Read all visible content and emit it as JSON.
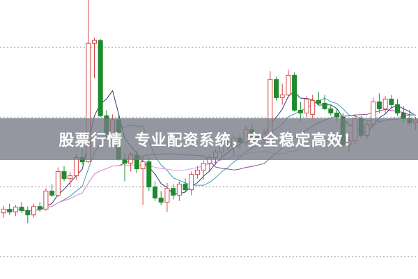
{
  "banner": {
    "text": "股票行情  专业配资系统，安全稳定高效！"
  },
  "colors": {
    "up": "#d64545",
    "down": "#1f8a2e",
    "grid": "#9a9a9a",
    "banner": "#767a84",
    "ma": [
      "#2b3b6e",
      "#3a9fb0",
      "#8b4d8e",
      "#e59ae3"
    ]
  },
  "chart_data": {
    "type": "candlestick",
    "title": "",
    "xlabel": "",
    "ylabel": "",
    "grid": true,
    "ylim": [
      2,
      42
    ],
    "gridlines": [
      5.2,
      15.2,
      25.2,
      35.2
    ],
    "moving_averages": [
      5,
      10,
      20,
      30
    ],
    "candles": [
      [
        11.5,
        12.5,
        10.8,
        12.0
      ],
      [
        12.0,
        12.8,
        11.2,
        11.6
      ],
      [
        11.6,
        12.6,
        11.0,
        12.3
      ],
      [
        12.3,
        13.0,
        11.5,
        11.8
      ],
      [
        11.8,
        12.4,
        10.0,
        11.2
      ],
      [
        11.2,
        12.8,
        10.8,
        12.4
      ],
      [
        12.4,
        13.0,
        11.6,
        12.0
      ],
      [
        12.0,
        15.0,
        11.8,
        14.6
      ],
      [
        14.6,
        15.6,
        13.8,
        14.0
      ],
      [
        14.0,
        18.0,
        13.8,
        17.4
      ],
      [
        17.4,
        18.2,
        16.0,
        16.4
      ],
      [
        16.4,
        17.4,
        15.2,
        16.8
      ],
      [
        16.8,
        20.0,
        16.2,
        19.4
      ],
      [
        19.4,
        20.6,
        18.4,
        18.8
      ],
      [
        18.8,
        42.0,
        18.6,
        35.8
      ],
      [
        35.8,
        36.6,
        30.8,
        36.2
      ],
      [
        36.2,
        36.4,
        25.2,
        25.4
      ],
      [
        25.4,
        26.2,
        22.4,
        22.8
      ],
      [
        22.8,
        25.6,
        22.0,
        24.8
      ],
      [
        24.8,
        25.4,
        19.0,
        19.2
      ],
      [
        19.2,
        20.0,
        16.0,
        18.6
      ],
      [
        18.6,
        20.2,
        17.4,
        19.8
      ],
      [
        19.8,
        20.4,
        17.2,
        17.8
      ],
      [
        17.8,
        19.6,
        12.6,
        18.8
      ],
      [
        18.8,
        19.4,
        14.6,
        15.2
      ],
      [
        15.2,
        16.0,
        13.2,
        13.6
      ],
      [
        13.6,
        14.6,
        12.6,
        13.0
      ],
      [
        13.0,
        15.8,
        11.6,
        15.0
      ],
      [
        15.0,
        15.6,
        13.4,
        14.0
      ],
      [
        14.0,
        16.0,
        13.2,
        15.6
      ],
      [
        15.6,
        16.4,
        14.4,
        14.8
      ],
      [
        14.8,
        17.4,
        14.0,
        17.0
      ],
      [
        17.0,
        18.2,
        16.4,
        17.6
      ],
      [
        17.6,
        19.0,
        16.2,
        18.6
      ],
      [
        18.6,
        19.8,
        17.4,
        19.4
      ],
      [
        19.4,
        20.6,
        18.4,
        20.2
      ],
      [
        20.2,
        21.8,
        19.6,
        21.4
      ],
      [
        21.4,
        22.0,
        20.4,
        21.0
      ],
      [
        21.0,
        22.6,
        19.8,
        22.2
      ],
      [
        22.2,
        22.8,
        20.6,
        21.6
      ],
      [
        21.6,
        24.0,
        21.0,
        23.4
      ],
      [
        23.4,
        24.2,
        21.8,
        22.4
      ],
      [
        22.4,
        23.0,
        21.6,
        22.0
      ],
      [
        22.0,
        23.6,
        21.4,
        22.8
      ],
      [
        22.8,
        31.8,
        22.6,
        30.6
      ],
      [
        30.6,
        31.0,
        27.6,
        28.0
      ],
      [
        28.0,
        30.0,
        27.0,
        28.4
      ],
      [
        28.4,
        32.0,
        28.0,
        31.2
      ],
      [
        31.2,
        31.6,
        26.0,
        26.2
      ],
      [
        26.2,
        27.4,
        24.6,
        25.8
      ],
      [
        25.8,
        28.2,
        25.2,
        27.8
      ],
      [
        25.6,
        28.4,
        25.0,
        27.6
      ],
      [
        27.6,
        28.8,
        27.0,
        27.2
      ],
      [
        27.2,
        28.4,
        26.2,
        26.4
      ],
      [
        26.4,
        27.0,
        25.4,
        25.8
      ],
      [
        25.8,
        26.4,
        24.6,
        25.2
      ],
      [
        25.2,
        25.8,
        20.8,
        21.2
      ],
      [
        21.2,
        22.4,
        20.2,
        21.8
      ],
      [
        21.8,
        25.6,
        21.2,
        25.0
      ],
      [
        25.0,
        25.4,
        22.2,
        22.6
      ],
      [
        22.6,
        24.6,
        22.0,
        24.2
      ],
      [
        24.2,
        28.0,
        23.6,
        27.4
      ],
      [
        27.4,
        28.6,
        25.8,
        26.4
      ],
      [
        26.4,
        28.2,
        25.6,
        27.8
      ],
      [
        27.8,
        28.4,
        26.4,
        27.0
      ],
      [
        27.0,
        27.8,
        25.4,
        25.8
      ],
      [
        25.8,
        26.8,
        24.4,
        25.0
      ],
      [
        25.0,
        26.2,
        24.0,
        24.4
      ],
      [
        24.4,
        25.2,
        23.4,
        24.8
      ]
    ]
  }
}
